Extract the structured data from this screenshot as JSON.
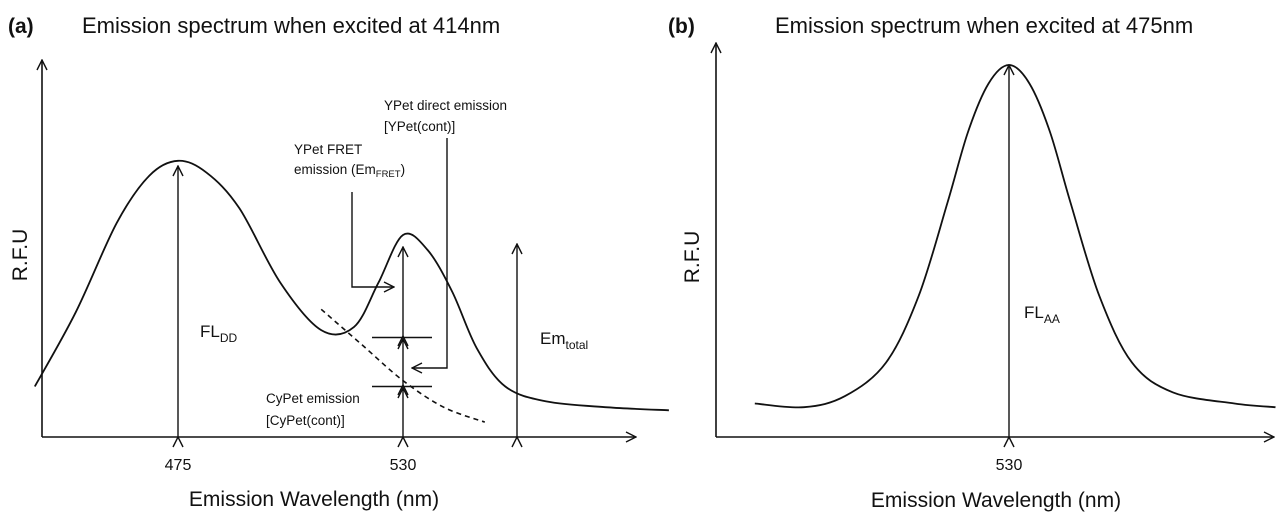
{
  "chart_data": [
    {
      "panel_label": "(a)",
      "title": "Emission spectrum when excited at 414nm",
      "type": "line",
      "xlabel": "Emission Wavelength (nm)",
      "ylabel": "R.F.U",
      "x_ticks": [
        475,
        530
      ],
      "xlim": [
        440,
        620
      ],
      "ylim": [
        0,
        1.0
      ],
      "series": [
        {
          "x": [
            440,
            450,
            460,
            468,
            475,
            482,
            490,
            500,
            510,
            518,
            524,
            530,
            536,
            542,
            548,
            555,
            565,
            580,
            595
          ],
          "y": [
            0.17,
            0.42,
            0.72,
            0.88,
            0.93,
            0.89,
            0.77,
            0.52,
            0.36,
            0.37,
            0.52,
            0.68,
            0.63,
            0.49,
            0.3,
            0.17,
            0.12,
            0.1,
            0.09
          ]
        },
        {
          "x": [
            510,
            520,
            530,
            540,
            550
          ],
          "y": [
            0.43,
            0.31,
            0.19,
            0.1,
            0.05
          ]
        }
      ],
      "annotations": [
        {
          "base": "FL",
          "sub": "DD"
        },
        {
          "base": "Em",
          "sub": "total"
        },
        {
          "base": "YPet FRET",
          "base2": "emission (Em",
          "sub": "FRET",
          "tail": ")"
        },
        {
          "line1": "YPet direct emission",
          "line2": "[YPet(cont)]"
        },
        {
          "line1": "CyPet emission",
          "line2": "[CyPet(cont)]"
        }
      ]
    },
    {
      "panel_label": "(b)",
      "title": "Emission spectrum when excited at 475nm",
      "type": "line",
      "xlabel": "Emission Wavelength (nm)",
      "ylabel": "R.F.U",
      "x_ticks": [
        530
      ],
      "xlim": [
        460,
        600
      ],
      "ylim": [
        0,
        1.0
      ],
      "series": [
        {
          "x": [
            468,
            480,
            490,
            500,
            508,
            515,
            520,
            525,
            530,
            535,
            540,
            545,
            552,
            560,
            570,
            585,
            595
          ],
          "y": [
            0.09,
            0.08,
            0.11,
            0.2,
            0.38,
            0.63,
            0.82,
            0.95,
            1.0,
            0.95,
            0.82,
            0.63,
            0.38,
            0.2,
            0.12,
            0.09,
            0.08
          ]
        }
      ],
      "annotations": [
        {
          "base": "FL",
          "sub": "AA"
        }
      ]
    }
  ]
}
